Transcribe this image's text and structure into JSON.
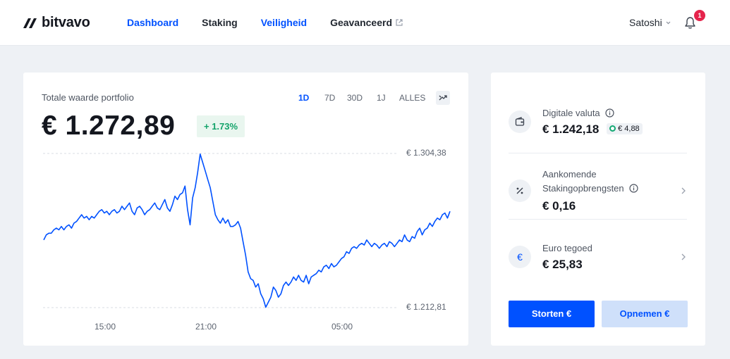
{
  "brand": {
    "name": "bitvavo"
  },
  "nav": {
    "items": [
      {
        "label": "Dashboard",
        "active": true
      },
      {
        "label": "Staking",
        "active": false
      },
      {
        "label": "Veiligheid",
        "active": true
      },
      {
        "label": "Geavanceerd",
        "external": true
      }
    ]
  },
  "user": {
    "name": "Satoshi",
    "notifications": "1"
  },
  "portfolio": {
    "label": "Totale waarde portfolio",
    "value": "€ 1.272,89",
    "change": "+ 1.73%",
    "periods": [
      "1D",
      "7D",
      "30D",
      "1J",
      "ALLES"
    ],
    "active_period": "1D"
  },
  "chart_data": {
    "type": "line",
    "y_max_label": "€ 1.304,38",
    "y_min_label": "€ 1.212,81",
    "ylim": [
      1212.81,
      1304.38
    ],
    "x_ticks": [
      "15:00",
      "21:00",
      "05:00"
    ],
    "series": [
      {
        "values": [
          1253,
          1256,
          1257,
          1257,
          1259,
          1260,
          1259,
          1261,
          1259,
          1261,
          1262,
          1260,
          1263,
          1264,
          1266,
          1268,
          1266,
          1267,
          1265,
          1267,
          1266,
          1268,
          1270,
          1271,
          1269,
          1270,
          1268,
          1270,
          1271,
          1269,
          1270,
          1273,
          1271,
          1273,
          1275,
          1270,
          1268,
          1272,
          1273,
          1271,
          1268,
          1270,
          1271,
          1273,
          1275,
          1272,
          1271,
          1274,
          1277,
          1272,
          1270,
          1274,
          1279,
          1277,
          1280,
          1281,
          1285,
          1271,
          1262,
          1278,
          1284,
          1293,
          1304,
          1299,
          1294,
          1289,
          1284,
          1276,
          1268,
          1265,
          1263,
          1266,
          1263,
          1265,
          1261,
          1261,
          1262,
          1264,
          1260,
          1252,
          1244,
          1234,
          1230,
          1229,
          1225,
          1227,
          1221,
          1218,
          1213,
          1216,
          1219,
          1225,
          1223,
          1219,
          1221,
          1226,
          1228,
          1226,
          1228,
          1231,
          1229,
          1232,
          1229,
          1228,
          1232,
          1227,
          1231,
          1232,
          1233,
          1235,
          1234,
          1237,
          1238,
          1236,
          1239,
          1237,
          1238,
          1240,
          1242,
          1243,
          1246,
          1245,
          1248,
          1249,
          1248,
          1250,
          1251,
          1250,
          1253,
          1251,
          1249,
          1251,
          1250,
          1248,
          1250,
          1251,
          1249,
          1252,
          1251,
          1249,
          1251,
          1253,
          1252,
          1256,
          1253,
          1252,
          1255,
          1254,
          1258,
          1260,
          1256,
          1259,
          1260,
          1263,
          1261,
          1264,
          1266,
          1265,
          1268,
          1269,
          1266,
          1270
        ]
      }
    ],
    "grid": "dashed horizontal at min and max"
  },
  "wallet": {
    "items": [
      {
        "title": "Digitale valuta",
        "value": "€ 1.242,18",
        "pill": "€ 4,88"
      },
      {
        "title": "Aankomende Stakingopbrengsten",
        "value": "€ 0,16"
      },
      {
        "title": "Euro tegoed",
        "value": "€ 25,83"
      }
    ],
    "deposit_label": "Storten €",
    "withdraw_label": "Opnemen €"
  },
  "colors": {
    "accent": "#0051ff",
    "positive": "#14a36a",
    "badge": "#e5244c"
  }
}
